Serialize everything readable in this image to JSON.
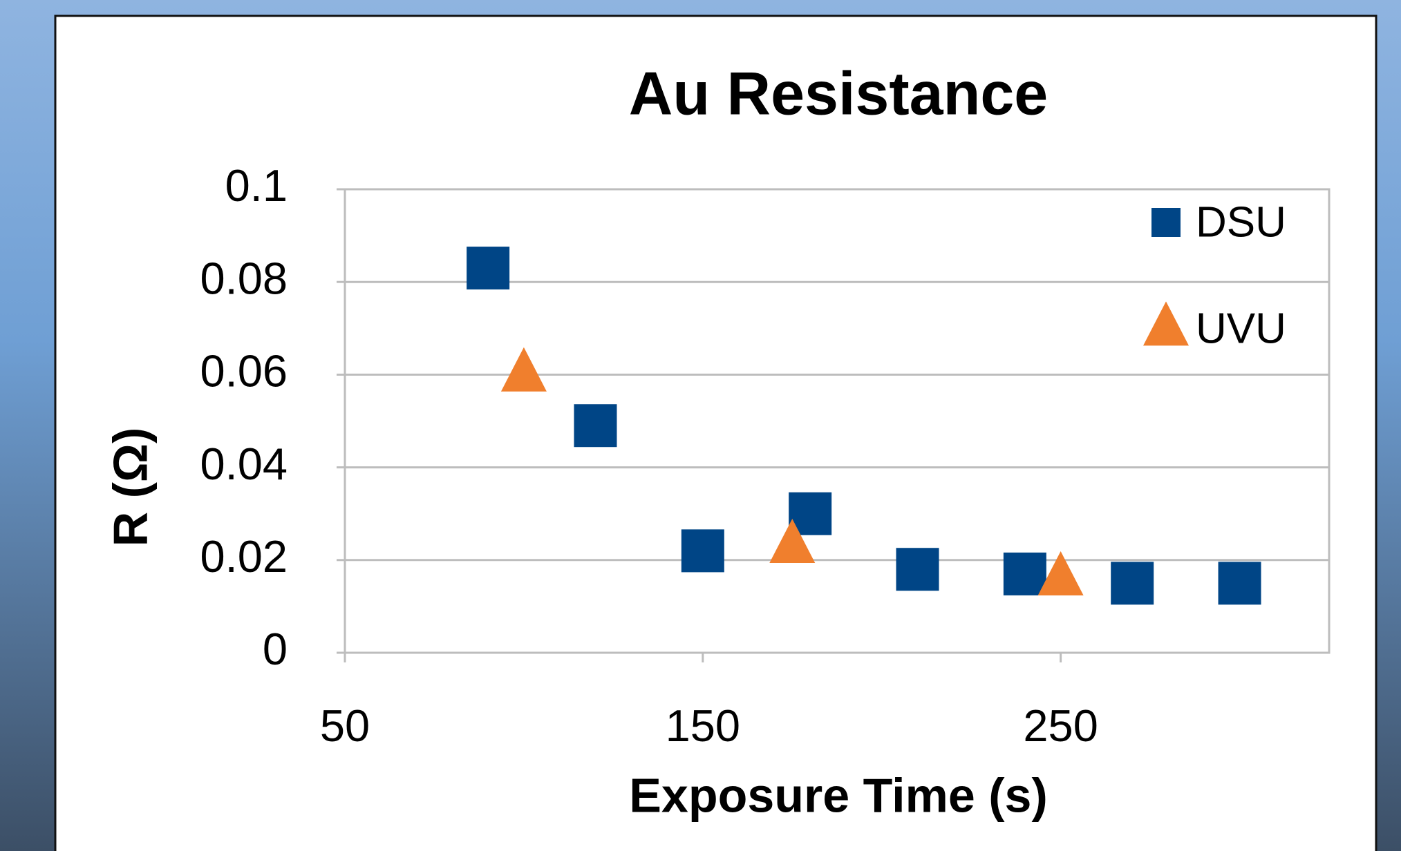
{
  "chart_data": {
    "type": "scatter",
    "title": "Au Resistance",
    "x_label": "Exposure Time (s)",
    "y_label": "R (Ω)",
    "xlim": [
      50,
      325
    ],
    "xticks": [
      50,
      150,
      250
    ],
    "ylim": [
      0,
      0.1
    ],
    "yticks": [
      0,
      0.02,
      0.04,
      0.06,
      0.08,
      0.1
    ],
    "grid": true,
    "legend": "upper right",
    "series": [
      {
        "name": "DSU",
        "color": "#004586",
        "marker": "square",
        "x": [
          90,
          120,
          150,
          180,
          210,
          240,
          270,
          300
        ],
        "values": [
          0.083,
          0.049,
          0.022,
          0.03,
          0.018,
          0.017,
          0.015,
          0.015
        ]
      },
      {
        "name": "UVU",
        "color": "#f07f2d",
        "marker": "triangle",
        "x": [
          100,
          175,
          250
        ],
        "values": [
          0.06,
          0.023,
          0.016
        ]
      }
    ]
  }
}
